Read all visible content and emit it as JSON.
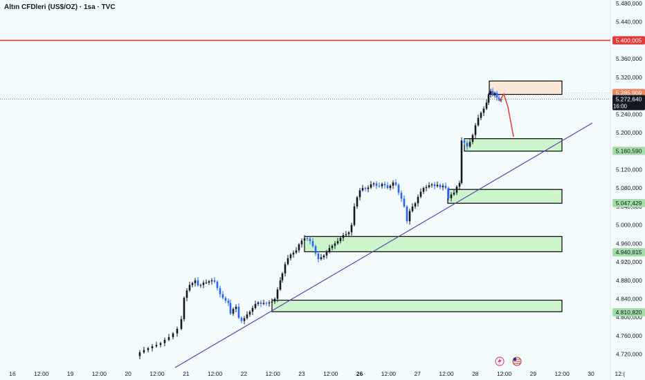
{
  "header": {
    "title": "Altın CFDleri (US$/OZ) · 1sa · TVC"
  },
  "chart_data": {
    "type": "candlestick",
    "ylim": [
      4700000,
      5490000
    ],
    "y_ticks": [
      "4.720,000",
      "4.760,000",
      "4.800,000",
      "4.840,000",
      "4.880,000",
      "4.920,000",
      "4.960,000",
      "5.000,000",
      "5.040,000",
      "5.080,000",
      "5.120,000",
      "5.160,000",
      "5.200,000",
      "5.240,000",
      "5.280,000",
      "5.320,000",
      "5.360,000",
      "5.400,000",
      "5.440,000",
      "5.480,000"
    ],
    "x_ticks": [
      "16",
      "12:00",
      "19",
      "12:00",
      "20",
      "12:00",
      "21",
      "12:00",
      "22",
      "12:00",
      "23",
      "12:00",
      "26",
      "12:00",
      "27",
      "12:00",
      "28",
      "12:00",
      "29",
      "12:00",
      "30",
      "12:("
    ],
    "x_ticks_bold": [
      "26"
    ],
    "resistance": {
      "value": 5400005,
      "label": "5.400,005",
      "color": "#e53935"
    },
    "last_price": {
      "value": 5272640,
      "label": "5.272,640",
      "sublabel": "16:00",
      "color": "#131722"
    },
    "price_labels": [
      {
        "value": 5285909,
        "label": "5.285,909",
        "color": "#e8885f"
      },
      {
        "value": 5160590,
        "label": "5.160,590",
        "color": "#a5dda8"
      },
      {
        "value": 5047429,
        "label": "5.047,429",
        "color": "#a5dda8"
      },
      {
        "value": 4940815,
        "label": "4.940,815",
        "color": "#a5dda8"
      },
      {
        "value": 4810820,
        "label": "4.810,820",
        "color": "#a5dda8"
      }
    ],
    "zones": [
      {
        "type": "supply",
        "top": 5312000,
        "bottom": 5283000,
        "color": "#fbe7d8"
      },
      {
        "type": "demand",
        "top": 5187000,
        "bottom": 5160000,
        "color": "#ccf5cc"
      },
      {
        "type": "demand",
        "top": 5077000,
        "bottom": 5047000,
        "color": "#ccf5cc"
      },
      {
        "type": "demand",
        "top": 4975000,
        "bottom": 4942000,
        "color": "#ccf5cc"
      },
      {
        "type": "demand",
        "top": 4837000,
        "bottom": 4812000,
        "color": "#ccf5cc"
      }
    ],
    "trendline": {
      "color": "#5a3fb8"
    },
    "projection_color": "#e53935",
    "candle_colors": {
      "up": "#131722",
      "down": "#2962ff"
    },
    "price_path": [
      [
        195,
        4716
      ],
      [
        202,
        4724
      ],
      [
        208,
        4729
      ],
      [
        214,
        4733
      ],
      [
        220,
        4737
      ],
      [
        226,
        4740
      ],
      [
        232,
        4744
      ],
      [
        238,
        4751
      ],
      [
        244,
        4757
      ],
      [
        250,
        4765
      ],
      [
        256,
        4775
      ],
      [
        262,
        4796
      ],
      [
        266,
        4842
      ],
      [
        270,
        4858
      ],
      [
        274,
        4870
      ],
      [
        278,
        4874
      ],
      [
        282,
        4880
      ],
      [
        286,
        4869
      ],
      [
        290,
        4870
      ],
      [
        294,
        4875
      ],
      [
        298,
        4875
      ],
      [
        302,
        4878
      ],
      [
        306,
        4880
      ],
      [
        310,
        4877
      ],
      [
        314,
        4863
      ],
      [
        318,
        4850
      ],
      [
        322,
        4842
      ],
      [
        326,
        4836
      ],
      [
        330,
        4831
      ],
      [
        333,
        4808
      ],
      [
        337,
        4818
      ],
      [
        341,
        4823
      ],
      [
        345,
        4799
      ],
      [
        349,
        4792
      ],
      [
        353,
        4798
      ],
      [
        357,
        4806
      ],
      [
        361,
        4812
      ],
      [
        365,
        4820
      ],
      [
        369,
        4829
      ],
      [
        373,
        4832
      ],
      [
        377,
        4829
      ],
      [
        381,
        4831
      ],
      [
        385,
        4830
      ],
      [
        389,
        4832
      ],
      [
        393,
        4834
      ],
      [
        397,
        4840
      ],
      [
        401,
        4860
      ],
      [
        405,
        4880
      ],
      [
        408,
        4895
      ],
      [
        412,
        4915
      ],
      [
        416,
        4928
      ],
      [
        420,
        4936
      ],
      [
        424,
        4940
      ],
      [
        428,
        4945
      ],
      [
        432,
        4958
      ],
      [
        436,
        4966
      ],
      [
        440,
        4971
      ],
      [
        444,
        4970
      ],
      [
        448,
        4965
      ],
      [
        452,
        4954
      ],
      [
        456,
        4938
      ],
      [
        460,
        4926
      ],
      [
        464,
        4930
      ],
      [
        468,
        4934
      ],
      [
        472,
        4941
      ],
      [
        476,
        4950
      ],
      [
        480,
        4955
      ],
      [
        484,
        4960
      ],
      [
        488,
        4965
      ],
      [
        492,
        4972
      ],
      [
        496,
        4978
      ],
      [
        500,
        4980
      ],
      [
        504,
        4984
      ],
      [
        508,
        5000
      ],
      [
        512,
        5040
      ],
      [
        516,
        5060
      ],
      [
        520,
        5075
      ],
      [
        524,
        5080
      ],
      [
        528,
        5078
      ],
      [
        532,
        5081
      ],
      [
        536,
        5088
      ],
      [
        540,
        5090
      ],
      [
        544,
        5085
      ],
      [
        548,
        5084
      ],
      [
        552,
        5089
      ],
      [
        556,
        5086
      ],
      [
        560,
        5080
      ],
      [
        564,
        5085
      ],
      [
        568,
        5092
      ],
      [
        572,
        5087
      ],
      [
        576,
        5070
      ],
      [
        580,
        5057
      ],
      [
        584,
        5040
      ],
      [
        588,
        5008
      ],
      [
        592,
        5030
      ],
      [
        596,
        5040
      ],
      [
        600,
        5047
      ],
      [
        604,
        5061
      ],
      [
        608,
        5072
      ],
      [
        612,
        5080
      ],
      [
        616,
        5082
      ],
      [
        620,
        5086
      ],
      [
        624,
        5088
      ],
      [
        628,
        5084
      ],
      [
        632,
        5087
      ],
      [
        636,
        5082
      ],
      [
        640,
        5085
      ],
      [
        644,
        5080
      ],
      [
        648,
        5058
      ],
      [
        652,
        5066
      ],
      [
        656,
        5070
      ],
      [
        660,
        5083
      ],
      [
        664,
        5091
      ],
      [
        667,
        5183
      ],
      [
        671,
        5178
      ],
      [
        675,
        5170
      ],
      [
        679,
        5180
      ],
      [
        683,
        5195
      ],
      [
        687,
        5216
      ],
      [
        691,
        5232
      ],
      [
        695,
        5243
      ],
      [
        699,
        5252
      ],
      [
        703,
        5265
      ],
      [
        706,
        5283
      ],
      [
        709,
        5290
      ],
      [
        712,
        5281
      ],
      [
        715,
        5286
      ],
      [
        718,
        5276
      ],
      [
        721,
        5271
      ],
      [
        724,
        5272
      ]
    ]
  }
}
